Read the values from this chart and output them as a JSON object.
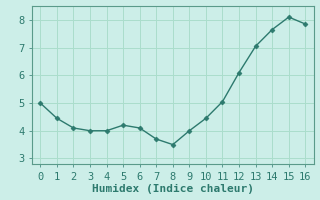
{
  "x": [
    0,
    1,
    2,
    3,
    4,
    5,
    6,
    7,
    8,
    9,
    10,
    11,
    12,
    13,
    14,
    15,
    16
  ],
  "y": [
    5.0,
    4.45,
    4.1,
    4.0,
    4.0,
    4.2,
    4.1,
    3.7,
    3.5,
    4.0,
    4.45,
    5.05,
    6.1,
    7.05,
    7.65,
    8.1,
    7.85
  ],
  "line_color": "#2d7a6e",
  "marker": "D",
  "marker_size": 2.5,
  "line_width": 1.0,
  "xlabel": "Humidex (Indice chaleur)",
  "xlabel_fontsize": 8,
  "bg_color": "#cceee8",
  "grid_color": "#aaddcc",
  "text_color": "#2d7a6e",
  "tick_color": "#2d7a6e",
  "ylim": [
    2.8,
    8.5
  ],
  "xlim": [
    -0.5,
    16.5
  ],
  "yticks": [
    3,
    4,
    5,
    6,
    7,
    8
  ],
  "xticks": [
    0,
    1,
    2,
    3,
    4,
    5,
    6,
    7,
    8,
    9,
    10,
    11,
    12,
    13,
    14,
    15,
    16
  ],
  "tick_fontsize": 7.5
}
